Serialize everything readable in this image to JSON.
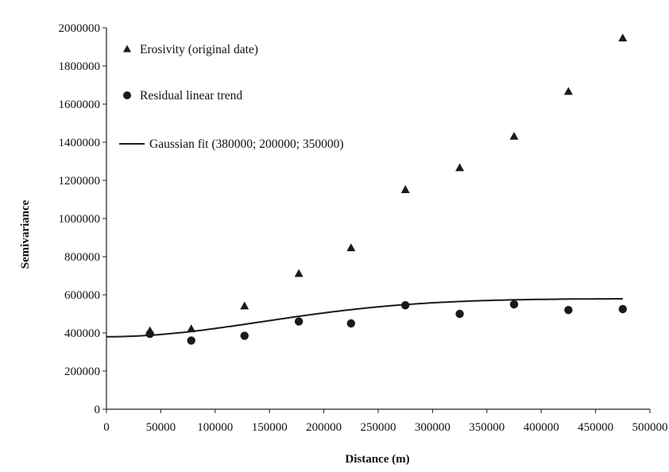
{
  "chart_data": {
    "type": "scatter",
    "title": "",
    "xlabel": "Distance (m)",
    "ylabel": "Semivariance",
    "xlim": [
      0,
      500000
    ],
    "ylim": [
      0,
      2000000
    ],
    "x_ticks": [
      "0",
      "50000",
      "100000",
      "150000",
      "200000",
      "250000",
      "300000",
      "350000",
      "400000",
      "450000",
      "500000"
    ],
    "y_ticks": [
      "0",
      "200000",
      "400000",
      "600000",
      "800000",
      "1000000",
      "1200000",
      "1400000",
      "1600000",
      "1800000",
      "2000000"
    ],
    "grid": false,
    "legend_position": "top-left",
    "series": [
      {
        "name": "Erosivity (original date)",
        "marker": "triangle",
        "color": "#1a1a1a",
        "x": [
          40000,
          78000,
          127000,
          177000,
          225000,
          275000,
          325000,
          375000,
          425000,
          475000
        ],
        "y": [
          410000,
          420000,
          540000,
          710000,
          845000,
          1150000,
          1265000,
          1430000,
          1665000,
          1945000
        ]
      },
      {
        "name": "Residual linear trend",
        "marker": "circle",
        "color": "#1a1a1a",
        "x": [
          40000,
          78000,
          127000,
          177000,
          225000,
          275000,
          325000,
          375000,
          425000,
          475000
        ],
        "y": [
          395000,
          360000,
          385000,
          460000,
          450000,
          545000,
          500000,
          550000,
          520000,
          525000
        ]
      },
      {
        "name": "Gaussian fit (380000; 200000; 350000)",
        "marker": "line",
        "color": "#1a1a1a",
        "model": {
          "nugget": 380000,
          "partial_sill": 200000,
          "range": 350000
        },
        "x_range": [
          0,
          475000
        ]
      }
    ]
  }
}
